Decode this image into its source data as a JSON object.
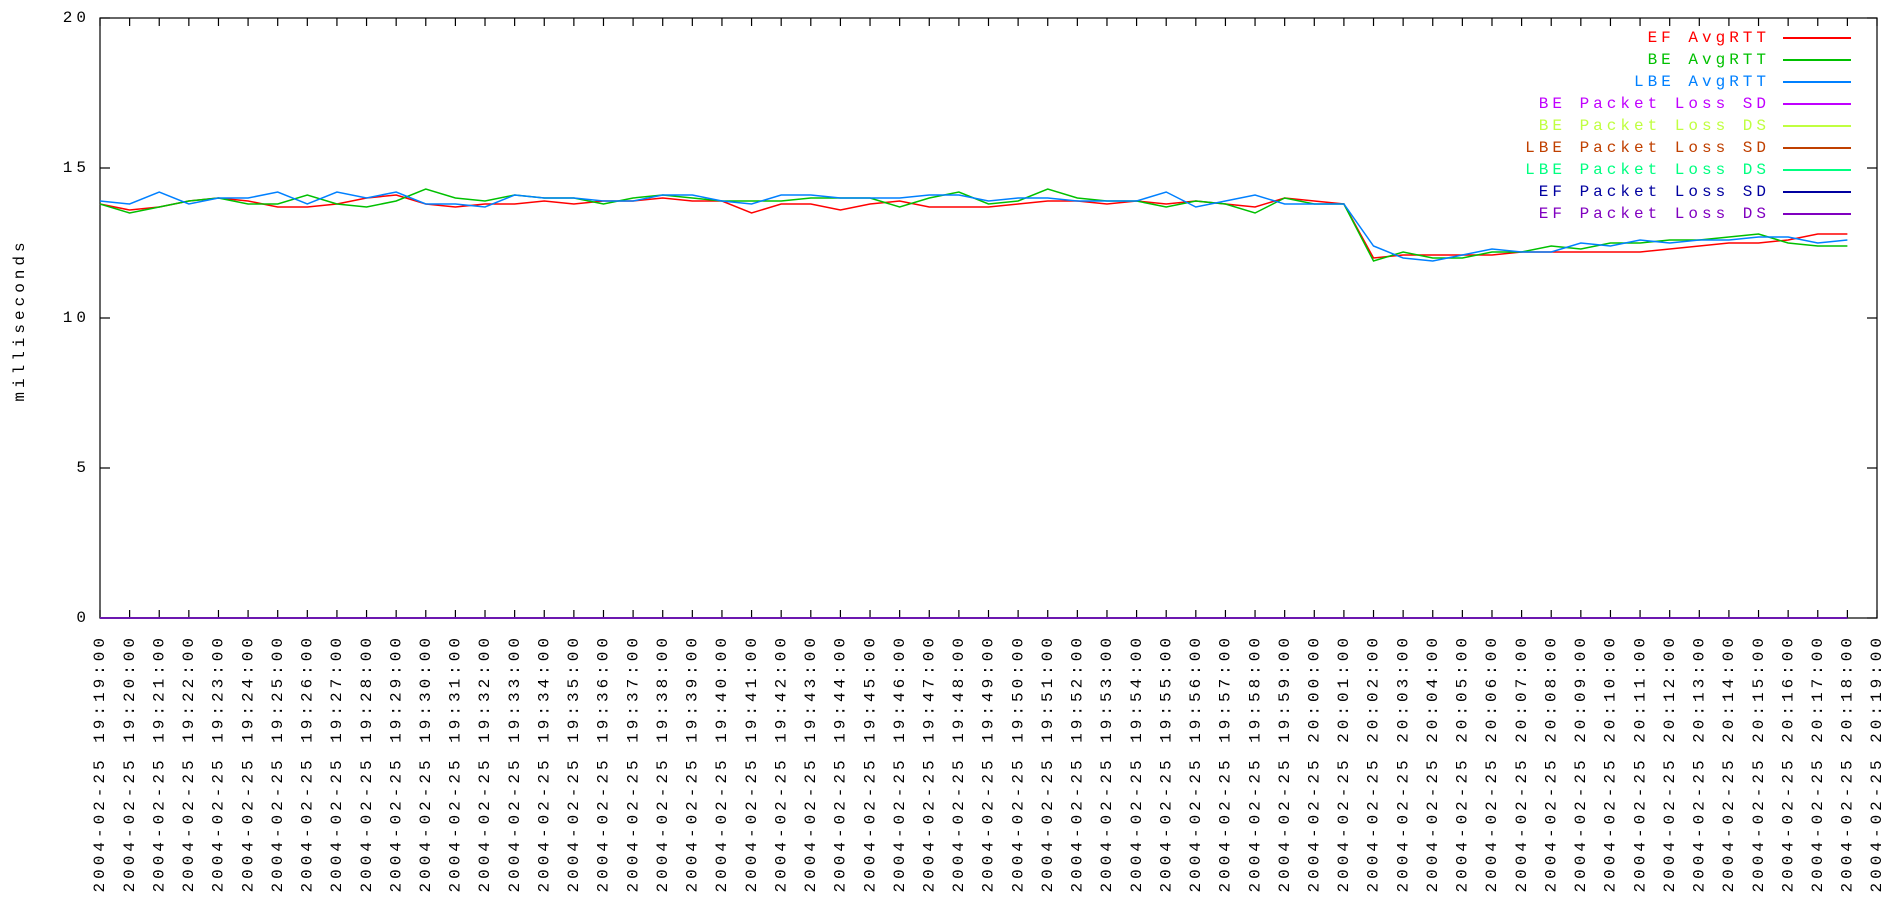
{
  "chart_data": {
    "type": "line",
    "ylabel": "milliseconds",
    "categories": [
      "2004-02-25 19:19:00",
      "2004-02-25 19:20:00",
      "2004-02-25 19:21:00",
      "2004-02-25 19:22:00",
      "2004-02-25 19:23:00",
      "2004-02-25 19:24:00",
      "2004-02-25 19:25:00",
      "2004-02-25 19:26:00",
      "2004-02-25 19:27:00",
      "2004-02-25 19:28:00",
      "2004-02-25 19:29:00",
      "2004-02-25 19:30:00",
      "2004-02-25 19:31:00",
      "2004-02-25 19:32:00",
      "2004-02-25 19:33:00",
      "2004-02-25 19:34:00",
      "2004-02-25 19:35:00",
      "2004-02-25 19:36:00",
      "2004-02-25 19:37:00",
      "2004-02-25 19:38:00",
      "2004-02-25 19:39:00",
      "2004-02-25 19:40:00",
      "2004-02-25 19:41:00",
      "2004-02-25 19:42:00",
      "2004-02-25 19:43:00",
      "2004-02-25 19:44:00",
      "2004-02-25 19:45:00",
      "2004-02-25 19:46:00",
      "2004-02-25 19:47:00",
      "2004-02-25 19:48:00",
      "2004-02-25 19:49:00",
      "2004-02-25 19:50:00",
      "2004-02-25 19:51:00",
      "2004-02-25 19:52:00",
      "2004-02-25 19:53:00",
      "2004-02-25 19:54:00",
      "2004-02-25 19:55:00",
      "2004-02-25 19:56:00",
      "2004-02-25 19:57:00",
      "2004-02-25 19:58:00",
      "2004-02-25 19:59:00",
      "2004-02-25 20:00:00",
      "2004-02-25 20:01:00",
      "2004-02-25 20:02:00",
      "2004-02-25 20:03:00",
      "2004-02-25 20:04:00",
      "2004-02-25 20:05:00",
      "2004-02-25 20:06:00",
      "2004-02-25 20:07:00",
      "2004-02-25 20:08:00",
      "2004-02-25 20:09:00",
      "2004-02-25 20:10:00",
      "2004-02-25 20:11:00",
      "2004-02-25 20:12:00",
      "2004-02-25 20:13:00",
      "2004-02-25 20:14:00",
      "2004-02-25 20:15:00",
      "2004-02-25 20:16:00",
      "2004-02-25 20:17:00",
      "2004-02-25 20:18:00",
      "2004-02-25 20:19:00"
    ],
    "ylim": [
      0,
      20
    ],
    "yticks": [
      0,
      5,
      10,
      15,
      20
    ],
    "legend": "upper right",
    "series": [
      {
        "name": "EF AvgRTT",
        "color": "#ff0000",
        "values": [
          13.8,
          13.6,
          13.7,
          13.9,
          14.0,
          13.9,
          13.7,
          13.7,
          13.8,
          14.0,
          14.1,
          13.8,
          13.7,
          13.8,
          13.8,
          13.9,
          13.8,
          13.9,
          13.9,
          14.0,
          13.9,
          13.9,
          13.5,
          13.8,
          13.8,
          13.6,
          13.8,
          13.9,
          13.7,
          13.7,
          13.7,
          13.8,
          13.9,
          13.9,
          13.8,
          13.9,
          13.8,
          13.9,
          13.8,
          13.7,
          14.0,
          13.9,
          13.8,
          12.0,
          12.1,
          12.1,
          12.1,
          12.1,
          12.2,
          12.2,
          12.2,
          12.2,
          12.2,
          12.3,
          12.4,
          12.5,
          12.5,
          12.6,
          12.8,
          12.8,
          null
        ]
      },
      {
        "name": "BE AvgRTT",
        "color": "#00c000",
        "values": [
          13.8,
          13.5,
          13.7,
          13.9,
          14.0,
          13.8,
          13.8,
          14.1,
          13.8,
          13.7,
          13.9,
          14.3,
          14.0,
          13.9,
          14.1,
          14.0,
          14.0,
          13.8,
          14.0,
          14.1,
          14.0,
          13.9,
          13.9,
          13.9,
          14.0,
          14.0,
          14.0,
          13.7,
          14.0,
          14.2,
          13.8,
          13.9,
          14.3,
          14.0,
          13.9,
          13.9,
          13.7,
          13.9,
          13.8,
          13.5,
          14.0,
          13.8,
          13.8,
          11.9,
          12.2,
          12.0,
          12.0,
          12.2,
          12.2,
          12.4,
          12.3,
          12.5,
          12.5,
          12.6,
          12.6,
          12.7,
          12.8,
          12.5,
          12.4,
          12.4,
          null
        ]
      },
      {
        "name": "LBE AvgRTT",
        "color": "#0080ff",
        "values": [
          13.9,
          13.8,
          14.2,
          13.8,
          14.0,
          14.0,
          14.2,
          13.8,
          14.2,
          14.0,
          14.2,
          13.8,
          13.8,
          13.7,
          14.1,
          14.0,
          14.0,
          13.9,
          13.9,
          14.1,
          14.1,
          13.9,
          13.8,
          14.1,
          14.1,
          14.0,
          14.0,
          14.0,
          14.1,
          14.1,
          13.9,
          14.0,
          14.0,
          13.9,
          13.9,
          13.9,
          14.2,
          13.7,
          13.9,
          14.1,
          13.8,
          13.8,
          13.8,
          12.4,
          12.0,
          11.9,
          12.1,
          12.3,
          12.2,
          12.2,
          12.5,
          12.4,
          12.6,
          12.5,
          12.6,
          12.6,
          12.7,
          12.7,
          12.5,
          12.6,
          null
        ]
      },
      {
        "name": "BE Packet Loss SD",
        "color": "#c000ff",
        "values": [
          0,
          0,
          0,
          0,
          0,
          0,
          0,
          0,
          0,
          0,
          0,
          0,
          0,
          0,
          0,
          0,
          0,
          0,
          0,
          0,
          0,
          0,
          0,
          0,
          0,
          0,
          0,
          0,
          0,
          0,
          0,
          0,
          0,
          0,
          0,
          0,
          0,
          0,
          0,
          0,
          0,
          0,
          0,
          0,
          0,
          0,
          0,
          0,
          0,
          0,
          0,
          0,
          0,
          0,
          0,
          0,
          0,
          0,
          0,
          0,
          null
        ]
      },
      {
        "name": "BE Packet Loss DS",
        "color": "#c0ff40",
        "values": [
          0,
          0,
          0,
          0,
          0,
          0,
          0,
          0,
          0,
          0,
          0,
          0,
          0,
          0,
          0,
          0,
          0,
          0,
          0,
          0,
          0,
          0,
          0,
          0,
          0,
          0,
          0,
          0,
          0,
          0,
          0,
          0,
          0,
          0,
          0,
          0,
          0,
          0,
          0,
          0,
          0,
          0,
          0,
          0,
          0,
          0,
          0,
          0,
          0,
          0,
          0,
          0,
          0,
          0,
          0,
          0,
          0,
          0,
          0,
          0,
          null
        ]
      },
      {
        "name": "LBE Packet Loss SD",
        "color": "#c04000",
        "values": [
          0,
          0,
          0,
          0,
          0,
          0,
          0,
          0,
          0,
          0,
          0,
          0,
          0,
          0,
          0,
          0,
          0,
          0,
          0,
          0,
          0,
          0,
          0,
          0,
          0,
          0,
          0,
          0,
          0,
          0,
          0,
          0,
          0,
          0,
          0,
          0,
          0,
          0,
          0,
          0,
          0,
          0,
          0,
          0,
          0,
          0,
          0,
          0,
          0,
          0,
          0,
          0,
          0,
          0,
          0,
          0,
          0,
          0,
          0,
          0,
          null
        ]
      },
      {
        "name": "LBE Packet Loss DS",
        "color": "#00ff80",
        "values": [
          0,
          0,
          0,
          0,
          0,
          0,
          0,
          0,
          0,
          0,
          0,
          0,
          0,
          0,
          0,
          0,
          0,
          0,
          0,
          0,
          0,
          0,
          0,
          0,
          0,
          0,
          0,
          0,
          0,
          0,
          0,
          0,
          0,
          0,
          0,
          0,
          0,
          0,
          0,
          0,
          0,
          0,
          0,
          0,
          0,
          0,
          0,
          0,
          0,
          0,
          0,
          0,
          0,
          0,
          0,
          0,
          0,
          0,
          0,
          0,
          null
        ]
      },
      {
        "name": "EF Packet Loss SD",
        "color": "#0000a0",
        "values": [
          0,
          0,
          0,
          0,
          0,
          0,
          0,
          0,
          0,
          0,
          0,
          0,
          0,
          0,
          0,
          0,
          0,
          0,
          0,
          0,
          0,
          0,
          0,
          0,
          0,
          0,
          0,
          0,
          0,
          0,
          0,
          0,
          0,
          0,
          0,
          0,
          0,
          0,
          0,
          0,
          0,
          0,
          0,
          0,
          0,
          0,
          0,
          0,
          0,
          0,
          0,
          0,
          0,
          0,
          0,
          0,
          0,
          0,
          0,
          0,
          null
        ]
      },
      {
        "name": "EF Packet Loss DS",
        "color": "#8000c0",
        "values": [
          0,
          0,
          0,
          0,
          0,
          0,
          0,
          0,
          0,
          0,
          0,
          0,
          0,
          0,
          0,
          0,
          0,
          0,
          0,
          0,
          0,
          0,
          0,
          0,
          0,
          0,
          0,
          0,
          0,
          0,
          0,
          0,
          0,
          0,
          0,
          0,
          0,
          0,
          0,
          0,
          0,
          0,
          0,
          0,
          0,
          0,
          0,
          0,
          0,
          0,
          0,
          0,
          0,
          0,
          0,
          0,
          0,
          0,
          0,
          0,
          null
        ]
      }
    ]
  }
}
